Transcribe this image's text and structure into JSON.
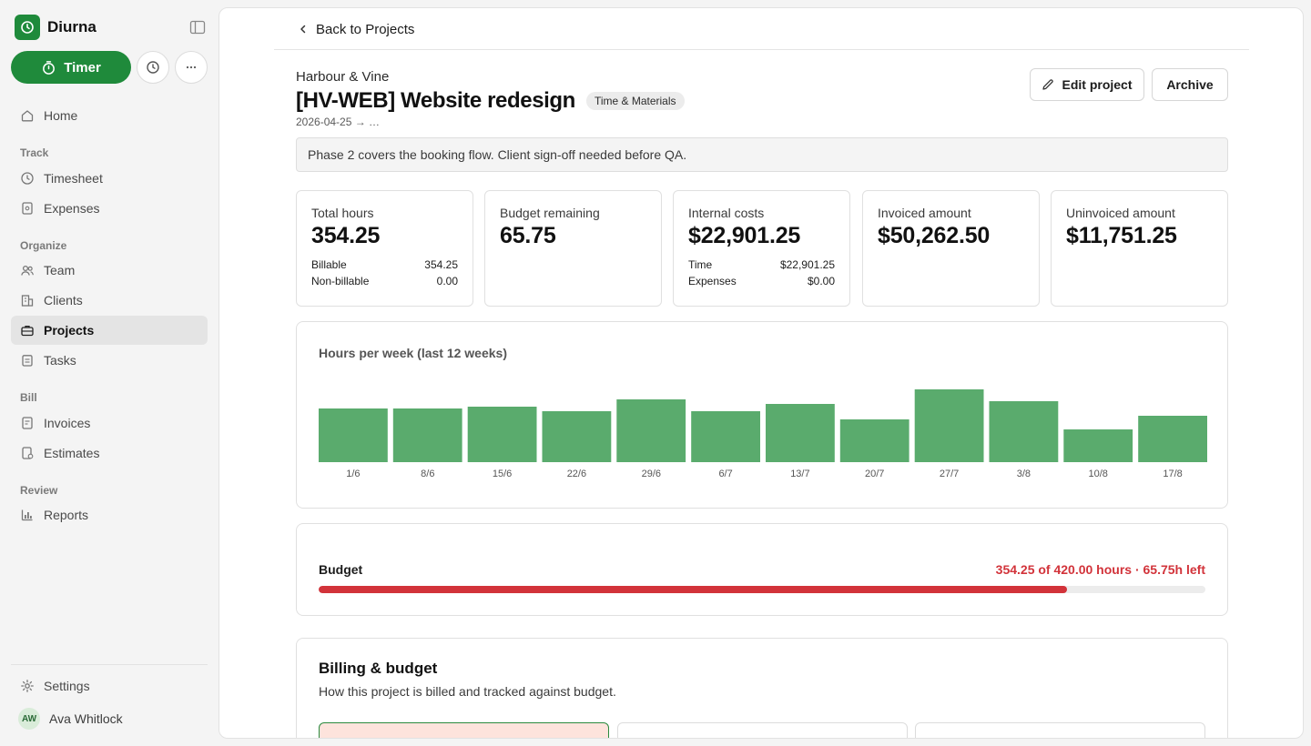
{
  "app": {
    "name": "Diurna",
    "brand_color": "#1f8a3b"
  },
  "sidebar": {
    "timer_label": "Timer",
    "home": "Home",
    "sections": {
      "track": "Track",
      "organize": "Organize",
      "bill": "Bill",
      "review": "Review"
    },
    "items": {
      "timesheet": "Timesheet",
      "expenses": "Expenses",
      "team": "Team",
      "clients": "Clients",
      "projects": "Projects",
      "tasks": "Tasks",
      "invoices": "Invoices",
      "estimates": "Estimates",
      "reports": "Reports"
    },
    "active_item": "Projects",
    "settings": "Settings",
    "user": {
      "initials": "AW",
      "name": "Ava Whitlock"
    }
  },
  "header": {
    "back_label": "Back to Projects",
    "client": "Harbour & Vine",
    "title": "[HV-WEB] Website redesign",
    "billing_badge": "Time & Materials",
    "dates": "2026-04-25 → …",
    "edit_label": "Edit project",
    "archive_label": "Archive",
    "notes": "Phase 2 covers the booking flow. Client sign-off needed before QA."
  },
  "stats": {
    "total_hours": {
      "label": "Total hours",
      "value": "354.25",
      "rows": [
        {
          "label": "Billable",
          "value": "354.25"
        },
        {
          "label": "Non-billable",
          "value": "0.00"
        }
      ]
    },
    "budget_remaining": {
      "label": "Budget remaining",
      "value": "65.75"
    },
    "internal_costs": {
      "label": "Internal costs",
      "value": "$22,901.25",
      "rows": [
        {
          "label": "Time",
          "value": "$22,901.25"
        },
        {
          "label": "Expenses",
          "value": "$0.00"
        }
      ]
    },
    "invoiced": {
      "label": "Invoiced amount",
      "value": "$50,262.50"
    },
    "uninvoiced": {
      "label": "Uninvoiced amount",
      "value": "$11,751.25"
    }
  },
  "chart_data": {
    "type": "bar",
    "title": "Hours per week (last 12 weeks)",
    "categories": [
      "1/6",
      "8/6",
      "15/6",
      "22/6",
      "29/6",
      "6/7",
      "13/7",
      "20/7",
      "27/7",
      "3/8",
      "10/8",
      "17/8"
    ],
    "values": [
      29.5,
      29.5,
      30.5,
      28,
      34.5,
      28,
      32,
      23.5,
      40,
      33.5,
      18,
      25.5
    ],
    "ylim": [
      0,
      40
    ],
    "bar_color": "#5aab6d",
    "grid": false
  },
  "budget": {
    "label": "Budget",
    "status": "354.25 of 420.00 hours · 65.75h left",
    "used": 354.25,
    "total": 420,
    "color": "#d2333a"
  },
  "billing": {
    "title": "Billing & budget",
    "subtitle": "How this project is billed and tracked against budget."
  }
}
